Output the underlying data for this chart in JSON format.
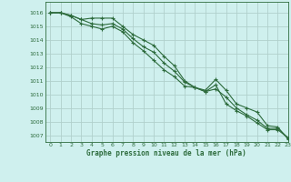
{
  "title": "Graphe pression niveau de la mer (hPa)",
  "background_color": "#cff0ee",
  "grid_color": "#b0d0cc",
  "line_color": "#2d6b3c",
  "xlim": [
    -0.5,
    23
  ],
  "ylim": [
    1006.5,
    1016.8
  ],
  "yticks": [
    1007,
    1008,
    1009,
    1010,
    1011,
    1012,
    1013,
    1014,
    1015,
    1016
  ],
  "xticks": [
    0,
    1,
    2,
    3,
    4,
    5,
    6,
    7,
    8,
    9,
    10,
    11,
    12,
    13,
    14,
    15,
    16,
    17,
    18,
    19,
    20,
    21,
    22,
    23
  ],
  "hours": [
    0,
    1,
    2,
    3,
    4,
    5,
    6,
    7,
    8,
    9,
    10,
    11,
    12,
    13,
    14,
    15,
    16,
    17,
    18,
    19,
    20,
    21,
    22,
    23
  ],
  "line1": [
    1016.0,
    1016.0,
    1015.8,
    1015.5,
    1015.6,
    1015.6,
    1015.6,
    1015.0,
    1014.4,
    1014.0,
    1013.6,
    1012.8,
    1012.1,
    1011.0,
    1010.5,
    1010.3,
    1011.1,
    1010.3,
    1009.3,
    1009.0,
    1008.7,
    1007.7,
    1007.6,
    1006.7
  ],
  "line2": [
    1016.0,
    1016.0,
    1015.8,
    1015.5,
    1015.2,
    1015.1,
    1015.2,
    1014.8,
    1014.1,
    1013.5,
    1013.1,
    1012.3,
    1011.7,
    1010.9,
    1010.5,
    1010.2,
    1010.4,
    1009.8,
    1009.0,
    1008.5,
    1008.1,
    1007.5,
    1007.5,
    1006.8
  ],
  "line3": [
    1016.0,
    1016.0,
    1015.7,
    1015.2,
    1015.0,
    1014.8,
    1015.0,
    1014.6,
    1013.8,
    1013.2,
    1012.5,
    1011.8,
    1011.3,
    1010.6,
    1010.5,
    1010.2,
    1010.7,
    1009.3,
    1008.8,
    1008.4,
    1007.9,
    1007.4,
    1007.4,
    1006.8
  ]
}
